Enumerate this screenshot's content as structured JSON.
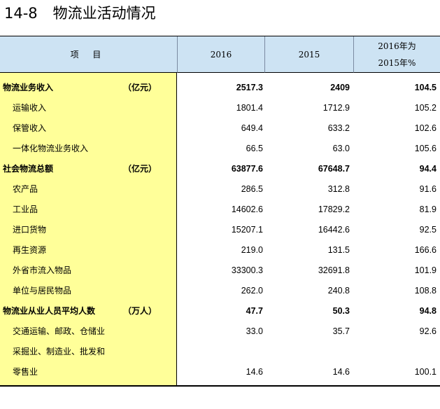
{
  "title": {
    "number": "14-8",
    "text": "物流业活动情况"
  },
  "header": {
    "item": "项 目",
    "col_2016": "2016",
    "col_2015": "2015",
    "col_ratio_line1": "2016年为",
    "col_ratio_line2": "2015年%"
  },
  "rows": [
    {
      "label": "物流业务收入",
      "unit": "（亿元）",
      "level": 0,
      "v2016": "2517.3",
      "v2015": "2409",
      "ratio": "104.5"
    },
    {
      "label": "运输收入",
      "unit": "",
      "level": 1,
      "v2016": "1801.4",
      "v2015": "1712.9",
      "ratio": "105.2"
    },
    {
      "label": "保管收入",
      "unit": "",
      "level": 1,
      "v2016": "649.4",
      "v2015": "633.2",
      "ratio": "102.6"
    },
    {
      "label": "一体化物流业务收入",
      "unit": "",
      "level": 1,
      "v2016": "66.5",
      "v2015": "63.0",
      "ratio": "105.6"
    },
    {
      "label": "社会物流总额",
      "unit": "（亿元）",
      "level": 0,
      "v2016": "63877.6",
      "v2015": "67648.7",
      "ratio": "94.4"
    },
    {
      "label": "农产品",
      "unit": "",
      "level": 1,
      "v2016": "286.5",
      "v2015": "312.8",
      "ratio": "91.6"
    },
    {
      "label": "工业品",
      "unit": "",
      "level": 1,
      "v2016": "14602.6",
      "v2015": "17829.2",
      "ratio": "81.9"
    },
    {
      "label": "进口货物",
      "unit": "",
      "level": 1,
      "v2016": "15207.1",
      "v2015": "16442.6",
      "ratio": "92.5"
    },
    {
      "label": "再生资源",
      "unit": "",
      "level": 1,
      "v2016": "219.0",
      "v2015": "131.5",
      "ratio": "166.6"
    },
    {
      "label": "外省市流入物品",
      "unit": "",
      "level": 1,
      "v2016": "33300.3",
      "v2015": "32691.8",
      "ratio": "101.9"
    },
    {
      "label": "单位与居民物品",
      "unit": "",
      "level": 1,
      "v2016": "262.0",
      "v2015": "240.8",
      "ratio": "108.8"
    },
    {
      "label": "物流业从业人员平均人数",
      "unit": "（万人）",
      "level": 0,
      "v2016": "47.7",
      "v2015": "50.3",
      "ratio": "94.8"
    },
    {
      "label": "交通运输、邮政、仓储业",
      "unit": "",
      "level": 1,
      "v2016": "33.0",
      "v2015": "35.7",
      "ratio": "92.6"
    },
    {
      "label": "采掘业、制造业、批发和",
      "unit": "",
      "level": 1,
      "v2016": "",
      "v2015": "",
      "ratio": ""
    },
    {
      "label": "零售业",
      "unit": "",
      "level": 1,
      "v2016": "14.6",
      "v2015": "14.6",
      "ratio": "100.1"
    }
  ]
}
